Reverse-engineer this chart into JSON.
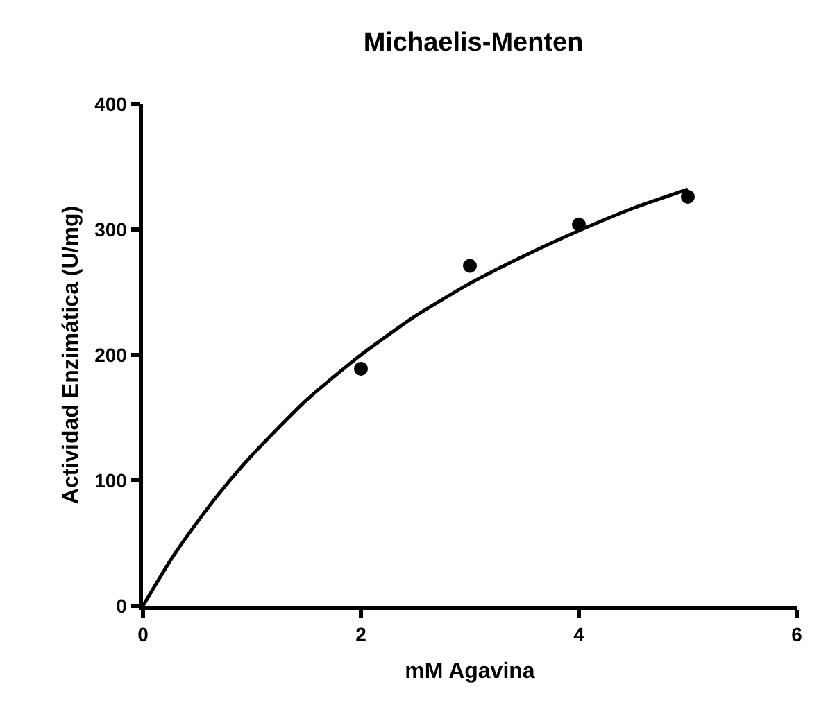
{
  "chart_data": {
    "type": "scatter",
    "title": "Michaelis-Menten",
    "xlabel": "mM Agavina",
    "ylabel": "Actividad Enzimática (U/mg)",
    "xlim": [
      0,
      6
    ],
    "xticks": [
      0,
      2,
      4,
      6
    ],
    "ylim": [
      0,
      400
    ],
    "yticks": [
      0,
      100,
      200,
      300,
      400
    ],
    "grid": false,
    "series": [
      {
        "marker": "circle",
        "color": "#000000",
        "x": [
          2,
          3,
          4,
          5
        ],
        "values": [
          189,
          271,
          304,
          326
        ]
      },
      {
        "type": "line",
        "marker": "none",
        "color": "#000000",
        "line_style": "solid",
        "x": [
          0,
          0.25,
          0.5,
          0.75,
          1,
          1.5,
          2,
          2.5,
          3,
          3.5,
          4,
          4.5,
          5
        ],
        "values": [
          0,
          36,
          67,
          95,
          120,
          164,
          200,
          231,
          257,
          279,
          299,
          317,
          332
        ]
      }
    ]
  }
}
